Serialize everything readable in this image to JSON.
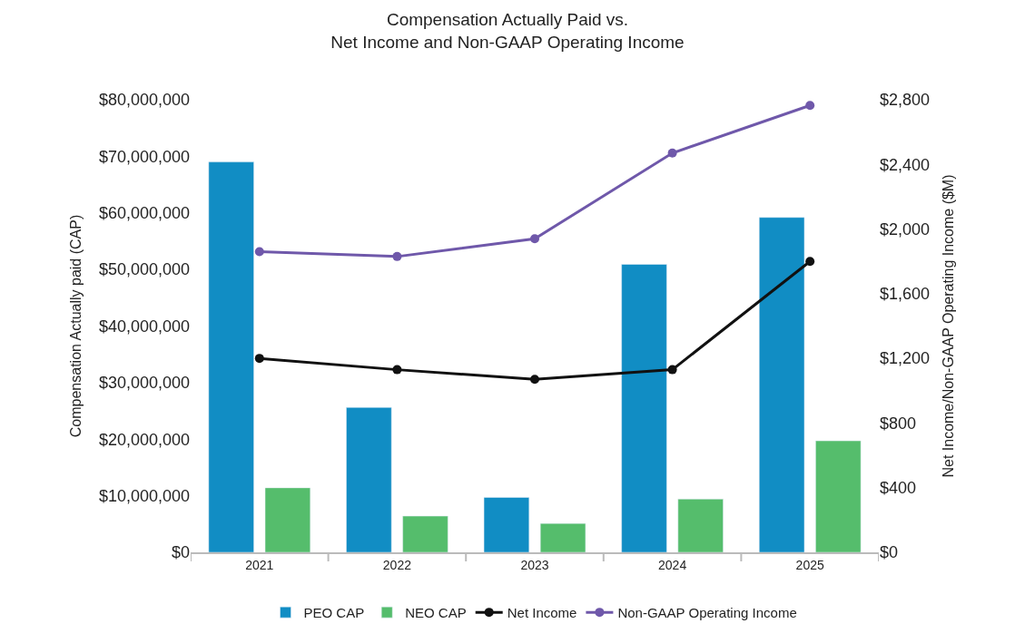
{
  "chart_data": {
    "type": "bar",
    "title": "Compensation Actually Paid vs.\nNet Income and Non-GAAP Operating Income",
    "ylabel": "Compensation Actually paid (CAP)",
    "y2label": "Net Income/Non-GAAP Operating Income ($M)",
    "categories": [
      "2021",
      "2022",
      "2023",
      "2024",
      "2025"
    ],
    "series": [
      {
        "name": "PEO CAP",
        "color": "#118dc4",
        "values": [
          69000000,
          25600000,
          9700000,
          50900000,
          59200000
        ]
      },
      {
        "name": "NEO CAP",
        "color": "#55bd6c",
        "values": [
          11400000,
          6400000,
          5100000,
          9400000,
          19700000
        ]
      },
      {
        "name": "Net Income",
        "type": "line",
        "axis": "y2",
        "color": "#111111",
        "marker": "circle",
        "values": [
          1200,
          1130,
          1070,
          1130,
          1800
        ]
      },
      {
        "name": "Non-GAAP Operating Income",
        "type": "line",
        "axis": "y2",
        "color": "#6f58aa",
        "marker": "circle",
        "values": [
          1860,
          1830,
          1940,
          2470,
          2765
        ]
      }
    ],
    "ylim": [
      0,
      80000000
    ],
    "yticks": [
      {
        "value": 0,
        "label": "$0"
      },
      {
        "value": 10000000,
        "label": "$10,000,000"
      },
      {
        "value": 20000000,
        "label": "$20,000,000"
      },
      {
        "value": 30000000,
        "label": "$30,000,000"
      },
      {
        "value": 40000000,
        "label": "$40,000,000"
      },
      {
        "value": 50000000,
        "label": "$50,000,000"
      },
      {
        "value": 60000000,
        "label": "$60,000,000"
      },
      {
        "value": 70000000,
        "label": "$70,000,000"
      },
      {
        "value": 80000000,
        "label": "$80,000,000"
      }
    ],
    "y2lim": [
      0,
      2800
    ],
    "y2ticks": [
      {
        "value": 0,
        "label": "$0"
      },
      {
        "value": 400,
        "label": "$400"
      },
      {
        "value": 800,
        "label": "$800"
      },
      {
        "value": 1200,
        "label": "$1,200"
      },
      {
        "value": 1600,
        "label": "$1,600"
      },
      {
        "value": 2000,
        "label": "$2,000"
      },
      {
        "value": 2400,
        "label": "$2,400"
      },
      {
        "value": 2800,
        "label": "$2,800"
      }
    ],
    "legend": "bottom"
  }
}
